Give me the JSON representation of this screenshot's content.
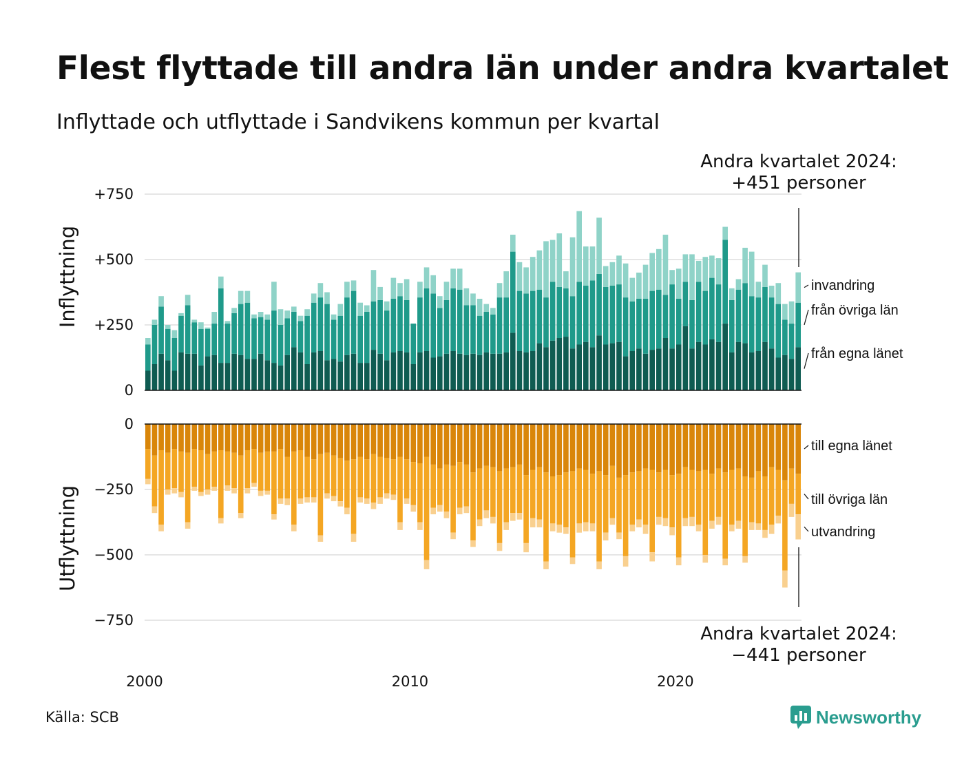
{
  "title": "Flest flyttade till andra län under andra kvartalet",
  "subtitle": "Inflyttade och utflyttade i Sandvikens kommun per kvartal",
  "source": "Källa: SCB",
  "brand": "Newsworthy",
  "colors": {
    "in_egna": "#0f5c52",
    "in_ovriga": "#1f9a8a",
    "in_invandring": "#8fd3c8",
    "ut_egna": "#d9860a",
    "ut_ovriga": "#f4a623",
    "ut_utvandring": "#f9d08f",
    "grid": "#dddddd"
  },
  "chart_data": {
    "type": "bar",
    "stacked": true,
    "x_start": "2000 Q1",
    "x_end": "2024 Q2",
    "x_ticks": [
      "2000",
      "2010",
      "2020"
    ],
    "top_panel": {
      "ylabel": "Inflyttning",
      "yticks": [
        "+750",
        "+500",
        "+250",
        "0"
      ],
      "ylim": [
        0,
        750
      ],
      "series_labels": [
        "invandring",
        "från övriga län",
        "från egna länet"
      ],
      "annotation_line1": "Andra kvartalet 2024:",
      "annotation_line2": "+451 personer"
    },
    "bottom_panel": {
      "ylabel": "Utflyttning",
      "yticks": [
        "0",
        "−250",
        "−500",
        "−750"
      ],
      "ylim": [
        -750,
        0
      ],
      "series_labels": [
        "till egna länet",
        "till övriga län",
        "utvandring"
      ],
      "annotation_line1": "Andra kvartalet 2024:",
      "annotation_line2": "−441 personer"
    },
    "series": [
      {
        "key": "in_egna",
        "values": [
          75,
          100,
          140,
          115,
          75,
          145,
          140,
          140,
          95,
          130,
          135,
          105,
          105,
          140,
          135,
          120,
          120,
          140,
          115,
          105,
          95,
          135,
          165,
          145,
          100,
          145,
          150,
          115,
          120,
          110,
          135,
          140,
          105,
          105,
          155,
          140,
          115,
          145,
          150,
          145,
          100,
          145,
          150,
          125,
          130,
          140,
          150,
          140,
          135,
          140,
          135,
          145,
          140,
          140,
          145,
          220,
          150,
          145,
          150,
          180,
          165,
          190,
          200,
          205,
          160,
          175,
          185,
          165,
          210,
          175,
          180,
          185,
          130,
          150,
          160,
          140,
          155,
          160,
          200,
          160,
          175,
          245,
          160,
          185,
          175,
          195,
          185,
          255,
          145,
          185,
          180,
          145,
          150,
          185,
          160,
          125,
          135,
          120,
          165
        ]
      },
      {
        "key": "in_ovriga",
        "values": [
          100,
          150,
          180,
          120,
          125,
          140,
          185,
          120,
          140,
          105,
          120,
          285,
          150,
          155,
          195,
          215,
          155,
          140,
          155,
          200,
          155,
          140,
          135,
          120,
          185,
          190,
          205,
          215,
          150,
          175,
          220,
          240,
          180,
          195,
          185,
          205,
          190,
          205,
          210,
          200,
          155,
          210,
          240,
          245,
          185,
          205,
          240,
          245,
          190,
          185,
          150,
          155,
          150,
          215,
          210,
          310,
          230,
          225,
          230,
          205,
          190,
          225,
          195,
          185,
          200,
          240,
          215,
          255,
          235,
          220,
          220,
          220,
          225,
          190,
          190,
          210,
          225,
          225,
          165,
          245,
          175,
          170,
          185,
          230,
          205,
          235,
          220,
          320,
          200,
          200,
          230,
          215,
          205,
          210,
          195,
          205,
          135,
          135,
          170
        ]
      },
      {
        "key": "in_invandring",
        "values": [
          25,
          20,
          40,
          15,
          30,
          10,
          40,
          10,
          25,
          5,
          45,
          45,
          10,
          20,
          50,
          45,
          15,
          20,
          20,
          110,
          60,
          30,
          20,
          20,
          25,
          35,
          55,
          45,
          20,
          45,
          60,
          40,
          50,
          25,
          120,
          50,
          35,
          80,
          50,
          80,
          0,
          60,
          80,
          70,
          45,
          70,
          75,
          80,
          65,
          45,
          65,
          30,
          25,
          55,
          100,
          65,
          110,
          100,
          130,
          150,
          215,
          160,
          205,
          65,
          225,
          270,
          150,
          130,
          215,
          80,
          90,
          110,
          130,
          90,
          100,
          130,
          145,
          155,
          230,
          55,
          115,
          105,
          175,
          80,
          130,
          85,
          100,
          50,
          45,
          40,
          135,
          170,
          60,
          85,
          45,
          80,
          60,
          85,
          116
        ]
      },
      {
        "key": "ut_egna",
        "values": [
          -95,
          -120,
          -100,
          -110,
          -95,
          -105,
          -110,
          -95,
          -100,
          -115,
          -105,
          -100,
          -105,
          -110,
          -120,
          -100,
          -95,
          -110,
          -105,
          -105,
          -95,
          -125,
          -105,
          -100,
          -125,
          -135,
          -115,
          -110,
          -120,
          -130,
          -140,
          -135,
          -125,
          -135,
          -115,
          -125,
          -130,
          -135,
          -125,
          -135,
          -145,
          -150,
          -125,
          -155,
          -170,
          -155,
          -160,
          -145,
          -155,
          -185,
          -170,
          -160,
          -165,
          -180,
          -170,
          -165,
          -155,
          -195,
          -175,
          -165,
          -185,
          -200,
          -195,
          -185,
          -180,
          -170,
          -175,
          -190,
          -180,
          -195,
          -160,
          -205,
          -195,
          -185,
          -180,
          -170,
          -175,
          -185,
          -175,
          -195,
          -190,
          -165,
          -175,
          -180,
          -175,
          -190,
          -170,
          -185,
          -175,
          -170,
          -200,
          -205,
          -180,
          -200,
          -165,
          -175,
          -215,
          -170,
          -190
        ]
      },
      {
        "key": "ut_ovriga",
        "values": [
          -115,
          -195,
          -285,
          -140,
          -150,
          -155,
          -265,
          -145,
          -160,
          -135,
          -135,
          -260,
          -130,
          -135,
          -220,
          -145,
          -130,
          -145,
          -150,
          -240,
          -190,
          -160,
          -280,
          -185,
          -155,
          -145,
          -310,
          -155,
          -155,
          -165,
          -180,
          -285,
          -155,
          -150,
          -185,
          -155,
          -135,
          -135,
          -250,
          -150,
          -165,
          -225,
          -395,
          -165,
          -140,
          -180,
          -255,
          -175,
          -160,
          -260,
          -195,
          -170,
          -190,
          -275,
          -205,
          -175,
          -185,
          -260,
          -185,
          -200,
          -340,
          -180,
          -190,
          -210,
          -330,
          -210,
          -200,
          -190,
          -345,
          -220,
          -200,
          -210,
          -310,
          -200,
          -185,
          -215,
          -315,
          -170,
          -185,
          -200,
          -320,
          -195,
          -180,
          -205,
          -325,
          -180,
          -185,
          -330,
          -210,
          -200,
          -305,
          -170,
          -200,
          -205,
          -220,
          -175,
          -345,
          -135,
          -155
        ]
      },
      {
        "key": "ut_utvandring",
        "values": [
          -20,
          -25,
          -25,
          -20,
          -20,
          -20,
          -25,
          -15,
          -15,
          -20,
          -15,
          -20,
          -20,
          -20,
          -20,
          -20,
          -15,
          -20,
          -15,
          -20,
          -20,
          -25,
          -25,
          -20,
          -20,
          -20,
          -25,
          -20,
          -20,
          -20,
          -25,
          -30,
          -20,
          -20,
          -25,
          -25,
          -20,
          -20,
          -30,
          -20,
          -25,
          -30,
          -35,
          -25,
          -25,
          -25,
          -25,
          -25,
          -25,
          -25,
          -25,
          -30,
          -25,
          -30,
          -30,
          -30,
          -25,
          -35,
          -35,
          -30,
          -30,
          -30,
          -30,
          -25,
          -25,
          -35,
          -35,
          -30,
          -30,
          -30,
          -25,
          -25,
          -40,
          -25,
          -30,
          -35,
          -35,
          -30,
          -30,
          -30,
          -30,
          -30,
          -35,
          -25,
          -30,
          -30,
          -30,
          -25,
          -25,
          -30,
          -25,
          -30,
          -25,
          -30,
          -35,
          -30,
          -65,
          -50,
          -96
        ]
      }
    ]
  }
}
